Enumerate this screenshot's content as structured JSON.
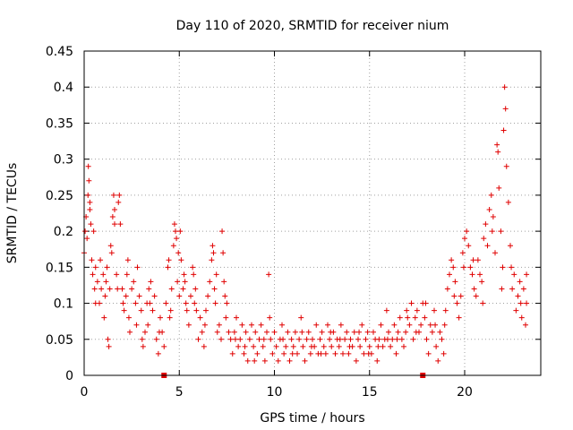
{
  "chart_data": {
    "type": "scatter",
    "title": "Day 110 of 2020, SRMTID for receiver nium",
    "xlabel": "GPS time / hours",
    "ylabel": "SRMTID / TECUs",
    "xlim": [
      0,
      24
    ],
    "ylim": [
      0,
      0.45
    ],
    "xticks": [
      0,
      5,
      10,
      15,
      20
    ],
    "xtick_labels": [
      "0",
      "5",
      "10",
      "15",
      "20"
    ],
    "yticks": [
      0,
      0.05,
      0.1,
      0.15,
      0.2,
      0.25,
      0.3,
      0.35,
      0.4,
      0.45
    ],
    "ytick_labels": [
      "0",
      "0.05",
      "0.1",
      "0.15",
      "0.2",
      "0.25",
      "0.3",
      "0.35",
      "0.4",
      "0.45"
    ],
    "grid": true,
    "marker": "+",
    "color": "#e00000",
    "series": [
      {
        "name": "SRMTID",
        "points": [
          [
            0.0,
            0.17
          ],
          [
            0.05,
            0.2
          ],
          [
            0.1,
            0.22
          ],
          [
            0.15,
            0.19
          ],
          [
            0.2,
            0.25
          ],
          [
            0.22,
            0.29
          ],
          [
            0.25,
            0.27
          ],
          [
            0.3,
            0.23
          ],
          [
            0.35,
            0.21
          ],
          [
            0.4,
            0.16
          ],
          [
            0.45,
            0.14
          ],
          [
            0.5,
            0.2
          ],
          [
            0.55,
            0.12
          ],
          [
            0.6,
            0.15
          ],
          [
            0.7,
            0.13
          ],
          [
            0.8,
            0.1
          ],
          [
            0.85,
            0.16
          ],
          [
            0.9,
            0.12
          ],
          [
            1.0,
            0.14
          ],
          [
            1.05,
            0.08
          ],
          [
            1.1,
            0.11
          ],
          [
            1.2,
            0.15
          ],
          [
            1.25,
            0.05
          ],
          [
            1.3,
            0.04
          ],
          [
            1.35,
            0.12
          ],
          [
            1.4,
            0.18
          ],
          [
            1.45,
            0.17
          ],
          [
            1.5,
            0.22
          ],
          [
            1.55,
            0.25
          ],
          [
            1.6,
            0.23
          ],
          [
            1.7,
            0.14
          ],
          [
            1.75,
            0.12
          ],
          [
            1.8,
            0.24
          ],
          [
            1.85,
            0.25
          ],
          [
            1.9,
            0.21
          ],
          [
            2.0,
            0.12
          ],
          [
            2.05,
            0.1
          ],
          [
            2.1,
            0.09
          ],
          [
            2.2,
            0.11
          ],
          [
            2.3,
            0.16
          ],
          [
            2.35,
            0.08
          ],
          [
            2.4,
            0.06
          ],
          [
            2.5,
            0.12
          ],
          [
            2.6,
            0.13
          ],
          [
            2.7,
            0.1
          ],
          [
            2.8,
            0.15
          ],
          [
            2.9,
            0.11
          ],
          [
            3.0,
            0.09
          ],
          [
            3.05,
            0.05
          ],
          [
            3.1,
            0.04
          ],
          [
            3.2,
            0.06
          ],
          [
            3.3,
            0.1
          ],
          [
            3.35,
            0.07
          ],
          [
            3.4,
            0.12
          ],
          [
            3.5,
            0.13
          ],
          [
            3.6,
            0.09
          ],
          [
            3.7,
            0.11
          ],
          [
            3.8,
            0.05
          ],
          [
            3.9,
            0.03
          ],
          [
            4.0,
            0.08
          ],
          [
            4.1,
            0.06
          ],
          [
            4.2,
            0.04
          ],
          [
            4.3,
            0.1
          ],
          [
            4.4,
            0.15
          ],
          [
            4.45,
            0.16
          ],
          [
            4.5,
            0.08
          ],
          [
            4.6,
            0.12
          ],
          [
            4.7,
            0.18
          ],
          [
            4.75,
            0.21
          ],
          [
            4.8,
            0.2
          ],
          [
            4.85,
            0.19
          ],
          [
            4.9,
            0.13
          ],
          [
            5.0,
            0.11
          ],
          [
            5.05,
            0.2
          ],
          [
            5.1,
            0.16
          ],
          [
            5.2,
            0.12
          ],
          [
            5.25,
            0.14
          ],
          [
            5.3,
            0.13
          ],
          [
            5.4,
            0.09
          ],
          [
            5.5,
            0.07
          ],
          [
            5.6,
            0.11
          ],
          [
            5.7,
            0.15
          ],
          [
            5.75,
            0.14
          ],
          [
            5.8,
            0.1
          ],
          [
            5.9,
            0.09
          ],
          [
            6.0,
            0.05
          ],
          [
            6.1,
            0.08
          ],
          [
            6.2,
            0.06
          ],
          [
            6.3,
            0.04
          ],
          [
            6.4,
            0.09
          ],
          [
            6.5,
            0.11
          ],
          [
            6.6,
            0.13
          ],
          [
            6.7,
            0.16
          ],
          [
            6.75,
            0.18
          ],
          [
            6.8,
            0.17
          ],
          [
            6.85,
            0.12
          ],
          [
            6.9,
            0.1
          ],
          [
            7.0,
            0.06
          ],
          [
            7.1,
            0.07
          ],
          [
            7.2,
            0.05
          ],
          [
            7.25,
            0.2
          ],
          [
            7.3,
            0.17
          ],
          [
            7.35,
            0.13
          ],
          [
            7.4,
            0.11
          ],
          [
            7.5,
            0.1
          ],
          [
            7.6,
            0.06
          ],
          [
            7.7,
            0.05
          ],
          [
            7.8,
            0.03
          ],
          [
            7.9,
            0.06
          ],
          [
            8.0,
            0.08
          ],
          [
            8.1,
            0.04
          ],
          [
            8.2,
            0.05
          ],
          [
            8.3,
            0.07
          ],
          [
            8.4,
            0.03
          ],
          [
            8.5,
            0.06
          ],
          [
            8.6,
            0.02
          ],
          [
            8.7,
            0.05
          ],
          [
            8.8,
            0.07
          ],
          [
            8.9,
            0.04
          ],
          [
            9.0,
            0.06
          ],
          [
            9.1,
            0.03
          ],
          [
            9.2,
            0.05
          ],
          [
            9.3,
            0.07
          ],
          [
            9.4,
            0.04
          ],
          [
            9.5,
            0.02
          ],
          [
            9.6,
            0.06
          ],
          [
            9.7,
            0.14
          ],
          [
            9.75,
            0.08
          ],
          [
            9.8,
            0.05
          ],
          [
            9.9,
            0.03
          ],
          [
            10.0,
            0.06
          ],
          [
            10.1,
            0.04
          ],
          [
            10.2,
            0.02
          ],
          [
            10.3,
            0.05
          ],
          [
            10.4,
            0.07
          ],
          [
            10.5,
            0.03
          ],
          [
            10.6,
            0.04
          ],
          [
            10.7,
            0.06
          ],
          [
            10.8,
            0.02
          ],
          [
            10.9,
            0.05
          ],
          [
            11.0,
            0.04
          ],
          [
            11.1,
            0.06
          ],
          [
            11.2,
            0.03
          ],
          [
            11.3,
            0.05
          ],
          [
            11.4,
            0.08
          ],
          [
            11.5,
            0.04
          ],
          [
            11.6,
            0.02
          ],
          [
            11.7,
            0.05
          ],
          [
            11.8,
            0.06
          ],
          [
            11.9,
            0.03
          ],
          [
            12.0,
            0.05
          ],
          [
            12.1,
            0.04
          ],
          [
            12.2,
            0.07
          ],
          [
            12.3,
            0.03
          ],
          [
            12.4,
            0.05
          ],
          [
            12.5,
            0.06
          ],
          [
            12.6,
            0.04
          ],
          [
            12.7,
            0.03
          ],
          [
            12.8,
            0.07
          ],
          [
            12.9,
            0.05
          ],
          [
            13.0,
            0.04
          ],
          [
            13.1,
            0.06
          ],
          [
            13.2,
            0.03
          ],
          [
            13.3,
            0.05
          ],
          [
            13.4,
            0.04
          ],
          [
            13.5,
            0.07
          ],
          [
            13.6,
            0.03
          ],
          [
            13.7,
            0.05
          ],
          [
            13.8,
            0.06
          ],
          [
            13.9,
            0.03
          ],
          [
            14.0,
            0.05
          ],
          [
            14.1,
            0.04
          ],
          [
            14.2,
            0.06
          ],
          [
            14.3,
            0.02
          ],
          [
            14.4,
            0.05
          ],
          [
            14.5,
            0.04
          ],
          [
            14.6,
            0.07
          ],
          [
            14.7,
            0.03
          ],
          [
            14.8,
            0.05
          ],
          [
            14.9,
            0.06
          ],
          [
            15.0,
            0.04
          ],
          [
            15.1,
            0.03
          ],
          [
            15.2,
            0.06
          ],
          [
            15.3,
            0.05
          ],
          [
            15.4,
            0.02
          ],
          [
            15.5,
            0.05
          ],
          [
            15.6,
            0.07
          ],
          [
            15.7,
            0.04
          ],
          [
            15.8,
            0.05
          ],
          [
            15.9,
            0.09
          ],
          [
            16.0,
            0.06
          ],
          [
            16.1,
            0.04
          ],
          [
            16.2,
            0.05
          ],
          [
            16.3,
            0.07
          ],
          [
            16.4,
            0.03
          ],
          [
            16.5,
            0.06
          ],
          [
            16.6,
            0.08
          ],
          [
            16.7,
            0.05
          ],
          [
            16.8,
            0.04
          ],
          [
            16.9,
            0.06
          ],
          [
            17.0,
            0.08
          ],
          [
            17.1,
            0.07
          ],
          [
            17.2,
            0.1
          ],
          [
            17.3,
            0.05
          ],
          [
            17.4,
            0.08
          ],
          [
            17.5,
            0.09
          ],
          [
            17.6,
            0.06
          ],
          [
            17.7,
            0.07
          ],
          [
            17.8,
            0.1
          ],
          [
            17.9,
            0.08
          ],
          [
            18.0,
            0.05
          ],
          [
            18.1,
            0.03
          ],
          [
            18.2,
            0.07
          ],
          [
            18.3,
            0.06
          ],
          [
            18.4,
            0.09
          ],
          [
            18.5,
            0.04
          ],
          [
            18.6,
            0.02
          ],
          [
            18.7,
            0.06
          ],
          [
            18.8,
            0.05
          ],
          [
            18.9,
            0.03
          ],
          [
            19.0,
            0.09
          ],
          [
            19.1,
            0.12
          ],
          [
            19.2,
            0.14
          ],
          [
            19.3,
            0.16
          ],
          [
            19.4,
            0.15
          ],
          [
            19.5,
            0.13
          ],
          [
            19.6,
            0.1
          ],
          [
            19.7,
            0.08
          ],
          [
            19.8,
            0.11
          ],
          [
            19.9,
            0.17
          ],
          [
            20.0,
            0.19
          ],
          [
            20.1,
            0.2
          ],
          [
            20.2,
            0.18
          ],
          [
            20.3,
            0.15
          ],
          [
            20.4,
            0.14
          ],
          [
            20.5,
            0.12
          ],
          [
            20.6,
            0.11
          ],
          [
            20.7,
            0.16
          ],
          [
            20.8,
            0.14
          ],
          [
            20.9,
            0.13
          ],
          [
            21.0,
            0.19
          ],
          [
            21.1,
            0.21
          ],
          [
            21.2,
            0.18
          ],
          [
            21.3,
            0.23
          ],
          [
            21.4,
            0.25
          ],
          [
            21.5,
            0.22
          ],
          [
            21.6,
            0.17
          ],
          [
            21.7,
            0.32
          ],
          [
            21.75,
            0.31
          ],
          [
            21.8,
            0.26
          ],
          [
            21.9,
            0.2
          ],
          [
            22.0,
            0.15
          ],
          [
            22.05,
            0.34
          ],
          [
            22.1,
            0.4
          ],
          [
            22.15,
            0.37
          ],
          [
            22.2,
            0.29
          ],
          [
            22.3,
            0.24
          ],
          [
            22.4,
            0.18
          ],
          [
            22.5,
            0.12
          ],
          [
            22.6,
            0.14
          ],
          [
            22.7,
            0.09
          ],
          [
            22.8,
            0.11
          ],
          [
            22.9,
            0.13
          ],
          [
            23.0,
            0.08
          ],
          [
            23.1,
            0.12
          ],
          [
            23.2,
            0.07
          ],
          [
            23.25,
            0.1
          ],
          [
            0.3,
            0.24
          ],
          [
            0.6,
            0.1
          ],
          [
            1.15,
            0.13
          ],
          [
            1.6,
            0.21
          ],
          [
            2.25,
            0.14
          ],
          [
            2.75,
            0.07
          ],
          [
            3.45,
            0.1
          ],
          [
            3.95,
            0.06
          ],
          [
            4.55,
            0.09
          ],
          [
            4.95,
            0.17
          ],
          [
            5.35,
            0.1
          ],
          [
            5.85,
            0.12
          ],
          [
            6.35,
            0.07
          ],
          [
            6.95,
            0.14
          ],
          [
            7.45,
            0.08
          ],
          [
            7.95,
            0.05
          ],
          [
            8.45,
            0.04
          ],
          [
            8.95,
            0.02
          ],
          [
            9.45,
            0.05
          ],
          [
            10.45,
            0.05
          ],
          [
            10.95,
            0.03
          ],
          [
            11.45,
            0.06
          ],
          [
            11.95,
            0.04
          ],
          [
            12.45,
            0.03
          ],
          [
            12.95,
            0.06
          ],
          [
            13.45,
            0.05
          ],
          [
            13.95,
            0.04
          ],
          [
            14.45,
            0.06
          ],
          [
            14.95,
            0.03
          ],
          [
            15.45,
            0.04
          ],
          [
            15.95,
            0.05
          ],
          [
            16.45,
            0.05
          ],
          [
            16.95,
            0.09
          ],
          [
            17.45,
            0.06
          ],
          [
            17.95,
            0.1
          ],
          [
            18.45,
            0.07
          ],
          [
            18.95,
            0.07
          ],
          [
            19.45,
            0.11
          ],
          [
            19.95,
            0.15
          ],
          [
            20.45,
            0.16
          ],
          [
            20.95,
            0.1
          ],
          [
            21.45,
            0.2
          ],
          [
            21.95,
            0.12
          ],
          [
            22.45,
            0.15
          ],
          [
            22.95,
            0.1
          ],
          [
            23.25,
            0.14
          ]
        ]
      }
    ],
    "axis_markers": [
      4.2,
      17.8
    ]
  }
}
